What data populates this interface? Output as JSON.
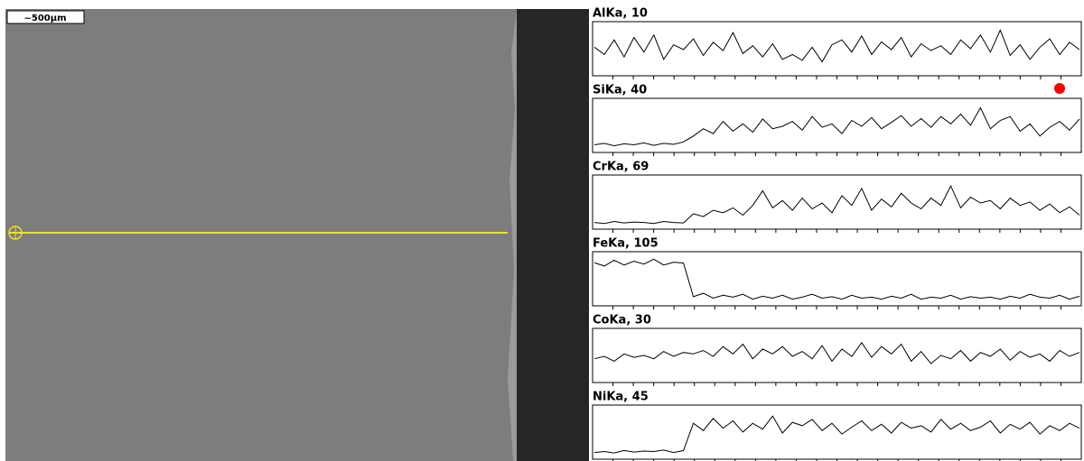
{
  "image": {
    "scale_label": "~500µm"
  },
  "chart_data": [
    {
      "type": "line",
      "title": "AlKa, 10",
      "color": "#000000",
      "ylim": [
        0,
        100
      ],
      "values": [
        55,
        40,
        70,
        35,
        75,
        45,
        80,
        30,
        60,
        50,
        72,
        38,
        65,
        48,
        85,
        42,
        58,
        35,
        62,
        30,
        40,
        28,
        55,
        25,
        60,
        70,
        45,
        78,
        40,
        66,
        50,
        75,
        35,
        62,
        48,
        58,
        40,
        70,
        52,
        80,
        45,
        90,
        38,
        60,
        30,
        55,
        72,
        40,
        65,
        50
      ]
    },
    {
      "type": "line",
      "title": "SiKa, 40",
      "color": "#000000",
      "ylim": [
        0,
        100
      ],
      "values": [
        12,
        15,
        10,
        14,
        12,
        16,
        11,
        15,
        13,
        18,
        30,
        45,
        35,
        60,
        40,
        55,
        38,
        65,
        45,
        50,
        60,
        42,
        70,
        48,
        55,
        35,
        62,
        50,
        68,
        45,
        58,
        72,
        50,
        66,
        48,
        70,
        55,
        75,
        52,
        88,
        45,
        62,
        70,
        40,
        55,
        30,
        48,
        60,
        42,
        65
      ]
    },
    {
      "type": "line",
      "title": "CrKa, 69",
      "color": "#000000",
      "ylim": [
        0,
        100
      ],
      "values": [
        10,
        8,
        12,
        9,
        11,
        10,
        8,
        12,
        10,
        9,
        28,
        22,
        35,
        30,
        40,
        25,
        45,
        75,
        40,
        55,
        35,
        60,
        38,
        50,
        30,
        65,
        45,
        80,
        35,
        58,
        42,
        70,
        50,
        38,
        60,
        45,
        85,
        40,
        62,
        50,
        55,
        38,
        60,
        45,
        52,
        35,
        48,
        30,
        42,
        25
      ]
    },
    {
      "type": "line",
      "title": "FeKa, 105",
      "color": "#000000",
      "ylim": [
        0,
        100
      ],
      "values": [
        85,
        78,
        90,
        80,
        88,
        82,
        92,
        80,
        86,
        84,
        15,
        22,
        12,
        18,
        14,
        20,
        10,
        16,
        12,
        18,
        10,
        14,
        20,
        12,
        15,
        10,
        18,
        12,
        14,
        10,
        16,
        12,
        20,
        10,
        14,
        12,
        18,
        10,
        15,
        12,
        14,
        10,
        16,
        12,
        20,
        14,
        12,
        18,
        10,
        16
      ]
    },
    {
      "type": "line",
      "title": "CoKa, 30",
      "color": "#000000",
      "ylim": [
        0,
        100
      ],
      "values": [
        45,
        50,
        40,
        55,
        48,
        52,
        45,
        60,
        50,
        58,
        55,
        62,
        50,
        70,
        55,
        75,
        45,
        65,
        55,
        70,
        50,
        60,
        45,
        72,
        40,
        65,
        50,
        78,
        48,
        70,
        55,
        75,
        40,
        60,
        35,
        52,
        45,
        62,
        40,
        58,
        50,
        65,
        42,
        60,
        48,
        55,
        40,
        62,
        50,
        58
      ]
    },
    {
      "type": "line",
      "title": "NiKa, 45",
      "color": "#000000",
      "ylim": [
        0,
        100
      ],
      "values": [
        10,
        12,
        9,
        14,
        11,
        13,
        12,
        15,
        10,
        14,
        70,
        55,
        80,
        60,
        75,
        52,
        70,
        58,
        85,
        50,
        72,
        65,
        78,
        55,
        70,
        48,
        62,
        75,
        55,
        68,
        50,
        72,
        60,
        65,
        52,
        78,
        58,
        70,
        55,
        62,
        75,
        50,
        68,
        58,
        72,
        48,
        65,
        55,
        70,
        60
      ]
    }
  ]
}
